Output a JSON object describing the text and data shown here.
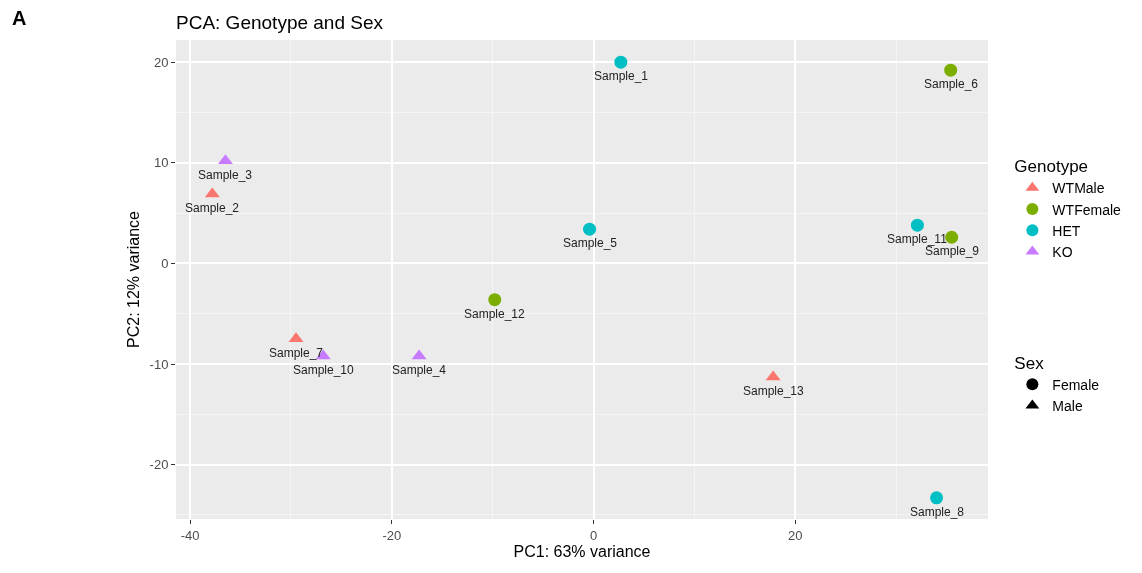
{
  "chart_data": {
    "type": "scatter",
    "title": "PCA: Genotype and Sex",
    "xlabel": "PC1: 63% variance",
    "ylabel": "PC2: 12% variance",
    "legend_title": [
      "Genotype",
      "Sex"
    ],
    "series": [
      {
        "name": "WTMale",
        "color": "#f8766d",
        "marker": "triangle",
        "x": [
          -37.8,
          -29.5,
          17.8
        ],
        "values": [
          6.9,
          -7.5,
          -11.3
        ]
      },
      {
        "name": "WTFemale",
        "color": "#7cae00",
        "marker": "circle",
        "x": [
          35.4,
          35.5,
          -9.8
        ],
        "values": [
          19.2,
          2.6,
          -3.6
        ]
      },
      {
        "name": "HET",
        "color": "#00bfc4",
        "marker": "circle",
        "x": [
          2.7,
          -0.4,
          34.0,
          32.1
        ],
        "values": [
          20.0,
          3.4,
          -23.3,
          3.8
        ]
      },
      {
        "name": "KO",
        "color": "#c77cff",
        "marker": "triangle",
        "x": [
          -36.5,
          -17.3,
          -26.8
        ],
        "values": [
          10.2,
          -9.2,
          -9.2
        ]
      },
      {
        "name": "Female",
        "color": "#000000",
        "marker": "circle"
      },
      {
        "name": "Male",
        "color": "#000000",
        "marker": "triangle"
      }
    ],
    "annotations": [
      "A",
      {
        "text": "Sample_1",
        "x": 2.7,
        "y": 20.0
      },
      {
        "text": "Sample_2",
        "x": -37.8,
        "y": 6.9
      },
      {
        "text": "Sample_3",
        "x": -36.5,
        "y": 10.2
      },
      {
        "text": "Sample_4",
        "x": -17.3,
        "y": -9.2
      },
      {
        "text": "Sample_5",
        "x": -0.4,
        "y": 3.4
      },
      {
        "text": "Sample_6",
        "x": 35.4,
        "y": 19.2
      },
      {
        "text": "Sample_7",
        "x": -29.5,
        "y": -7.5
      },
      {
        "text": "Sample_8",
        "x": 34.0,
        "y": -23.3
      },
      {
        "text": "Sample_9",
        "x": 35.5,
        "y": 2.6
      },
      {
        "text": "Sample_10",
        "x": -26.8,
        "y": -9.2
      },
      {
        "text": "Sample_11",
        "x": 32.1,
        "y": 3.8
      },
      {
        "text": "Sample_12",
        "x": -9.8,
        "y": -3.6
      },
      {
        "text": "Sample_13",
        "x": 17.8,
        "y": -11.3
      }
    ],
    "xlim": [
      -41.4,
      39.1
    ],
    "ylim": [
      -25.4,
      22.2
    ],
    "xticks": [
      -40,
      -20,
      0,
      20
    ],
    "yticks": [
      -20,
      -10,
      0,
      10,
      20
    ],
    "grid": true,
    "legend": "right"
  }
}
